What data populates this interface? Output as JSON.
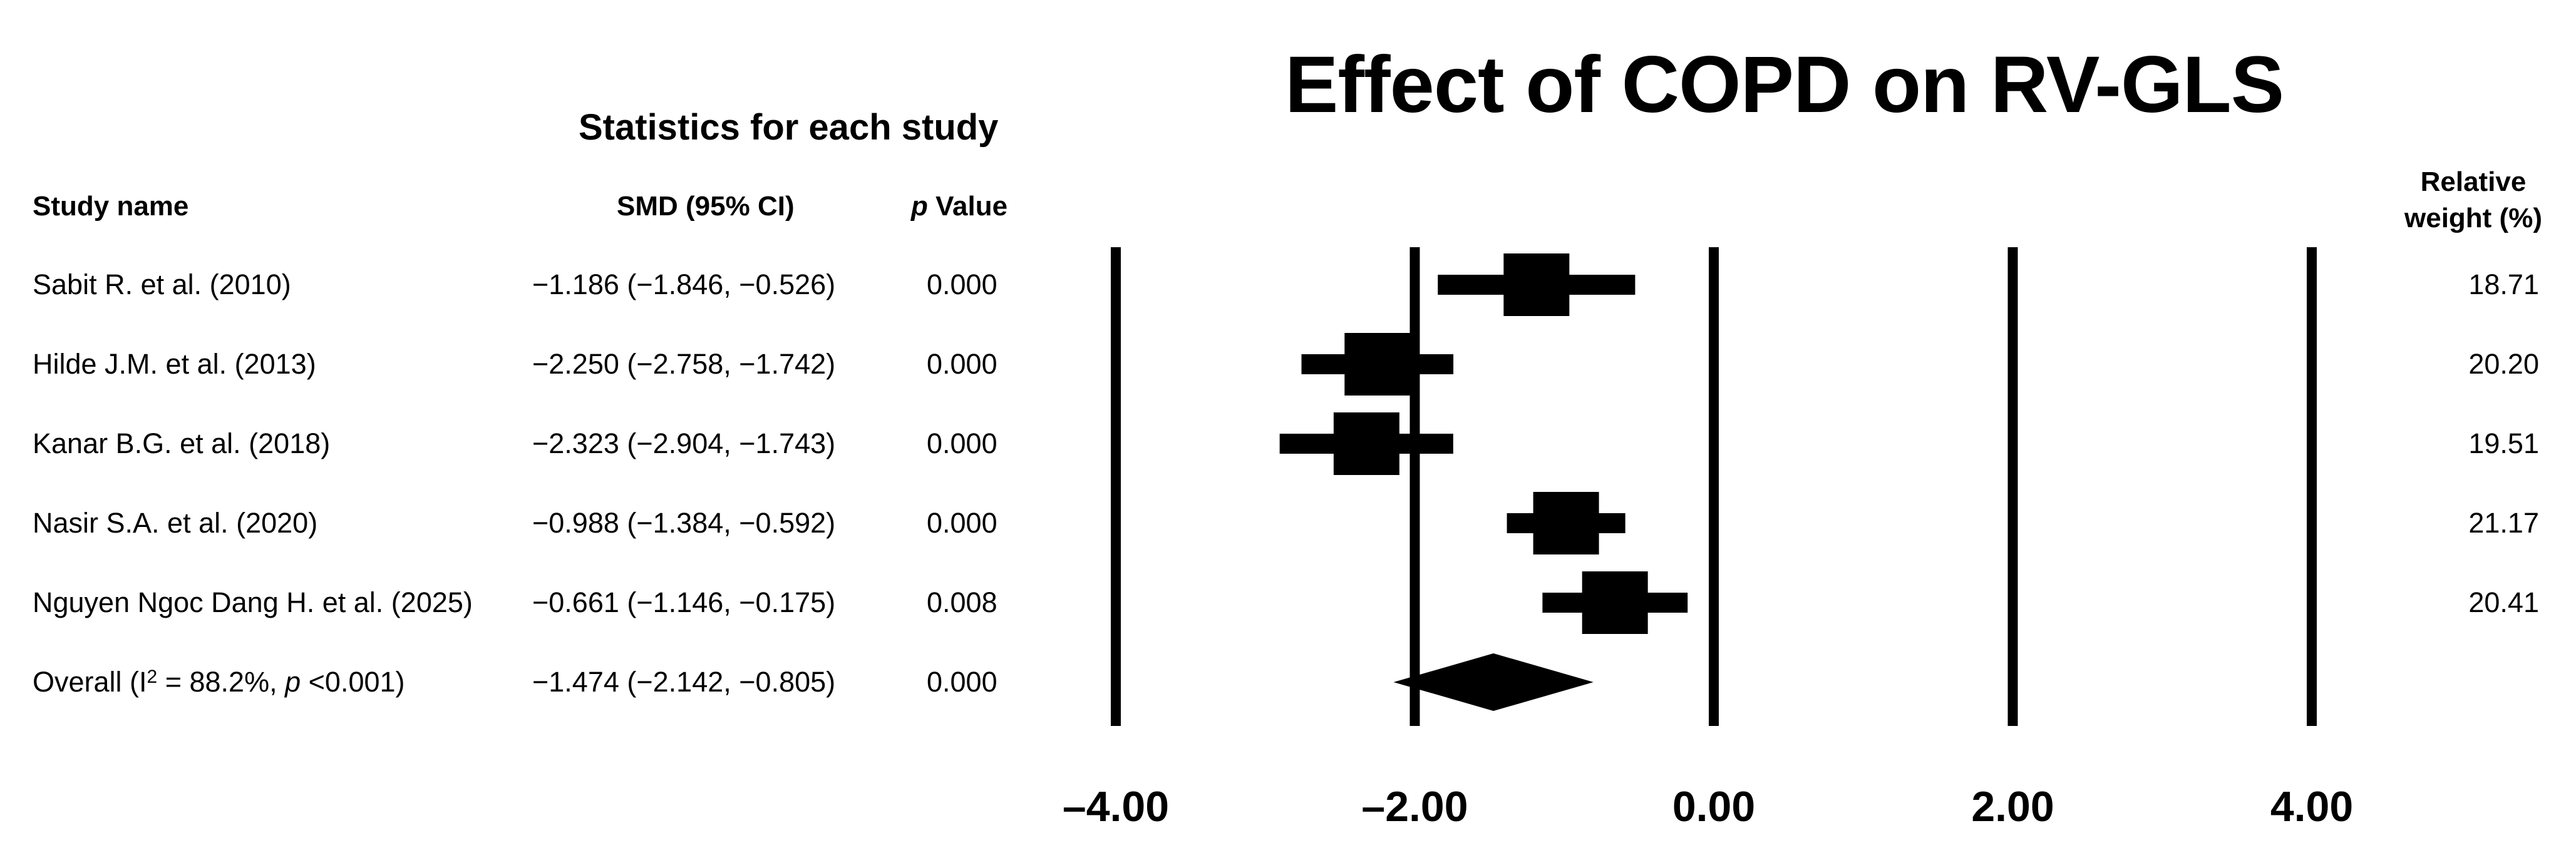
{
  "chart_data": {
    "type": "forest",
    "title": "Effect of COPD on RV-GLS",
    "section_title": "Statistics for each study",
    "columns": {
      "study": "Study name",
      "smd": "SMD (95% CI)",
      "p": "Value",
      "p_prefix": "p",
      "weight": "Relative weight (%)"
    },
    "xlim": [
      -4,
      4
    ],
    "x_ticks": [
      -4,
      -2,
      0,
      2,
      4
    ],
    "x_tick_labels": [
      "–4.00",
      "–2.00",
      "0.00",
      "2.00",
      "4.00"
    ],
    "vertical_lines": [
      -4,
      -2,
      0,
      2,
      4
    ],
    "studies": [
      {
        "name": "Sabit R. et al. (2010)",
        "smd": -1.186,
        "lower": -1.846,
        "upper": -0.526,
        "ci_text": "−1.186 (−1.846, −0.526)",
        "p": "0.000",
        "weight": "18.71"
      },
      {
        "name": "Hilde J.M. et al. (2013)",
        "smd": -2.25,
        "lower": -2.758,
        "upper": -1.742,
        "ci_text": "−2.250 (−2.758, −1.742)",
        "p": "0.000",
        "weight": "20.20"
      },
      {
        "name": "Kanar B.G. et al. (2018)",
        "smd": -2.323,
        "lower": -2.904,
        "upper": -1.743,
        "ci_text": "−2.323 (−2.904, −1.743)",
        "p": "0.000",
        "weight": "19.51"
      },
      {
        "name": "Nasir S.A. et al. (2020)",
        "smd": -0.988,
        "lower": -1.384,
        "upper": -0.592,
        "ci_text": "−0.988 (−1.384, −0.592)",
        "p": "0.000",
        "weight": "21.17"
      },
      {
        "name": "Nguyen Ngoc Dang H. et al. (2025)",
        "smd": -0.661,
        "lower": -1.146,
        "upper": -0.175,
        "ci_text": "−0.661 (−1.146, −0.175)",
        "p": "0.008",
        "weight": "20.41"
      }
    ],
    "overall": {
      "name_prefix": "Overall (I",
      "name_sup": "2",
      "name_mid": " = 88.2%, ",
      "name_p": "p",
      "name_suffix": " <0.001)",
      "smd": -1.474,
      "lower": -2.142,
      "upper": -0.805,
      "ci_text": "−1.474 (−2.142, −0.805)",
      "p": "0.000"
    },
    "colors": {
      "ink": "#000000",
      "background": "#ffffff"
    }
  }
}
